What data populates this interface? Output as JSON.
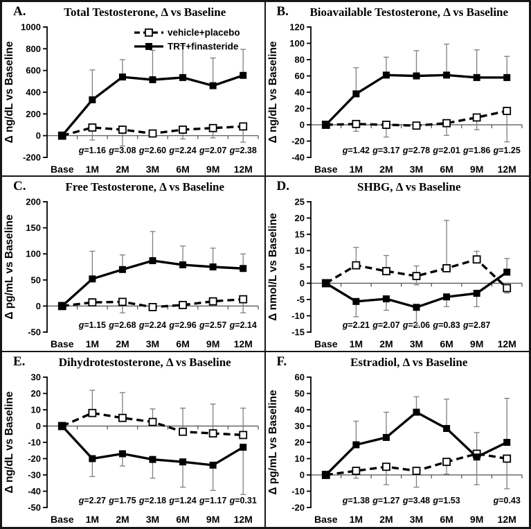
{
  "figure": {
    "colors": {
      "line": "#000000",
      "error": "#7f7f7f",
      "open_fill": "#ffffff",
      "axis": "#000000",
      "zero_line": "#4d4d4d",
      "border": "#161616"
    }
  },
  "chart_data": [
    {
      "type": "line",
      "panel_letter": "A.",
      "title": "Total Testosterone, Δ vs Baseline",
      "ylabel": "Δ ng/dL vs Baseline",
      "ylim": [
        -200,
        1000
      ],
      "ystep": 200,
      "categories": [
        "Base",
        "1M",
        "2M",
        "3M",
        "6M",
        "9M",
        "12M"
      ],
      "g_values": [
        "1.16",
        "3.08",
        "2.60",
        "2.24",
        "2.07",
        "2.38"
      ],
      "show_legend": true,
      "legend_position": "top-right",
      "grid": false,
      "series": [
        {
          "name": "vehicle+placebo",
          "line": "dashed",
          "marker": "open",
          "values": [
            0,
            75,
            55,
            20,
            55,
            70,
            85
          ],
          "err_up": [
            null,
            null,
            null,
            null,
            null,
            null,
            null
          ],
          "err_down": [
            null,
            -40,
            -95,
            -10,
            -30,
            -20,
            -60
          ]
        },
        {
          "name": "TRT+finasteride",
          "line": "solid",
          "marker": "filled",
          "values": [
            0,
            330,
            540,
            515,
            535,
            460,
            555
          ],
          "err_up": [
            null,
            605,
            700,
            785,
            830,
            715,
            795
          ],
          "err_down": [
            null,
            null,
            null,
            null,
            null,
            null,
            null
          ]
        }
      ]
    },
    {
      "type": "line",
      "panel_letter": "B.",
      "title": "Bioavailable Testosterone, Δ vs Baseline",
      "ylabel": "Δ ng/dL vs Baseline",
      "ylim": [
        -40,
        120
      ],
      "ystep": 20,
      "categories": [
        "Base",
        "1M",
        "2M",
        "3M",
        "6M",
        "9M",
        "12M"
      ],
      "g_values": [
        "1.42",
        "3.17",
        "2.78",
        "2.01",
        "1.86",
        "1.25"
      ],
      "show_legend": false,
      "grid": false,
      "series": [
        {
          "name": "vehicle+placebo",
          "line": "dashed",
          "marker": "open",
          "values": [
            0,
            1,
            0,
            -1,
            2,
            9,
            17
          ],
          "err_up": [
            null,
            null,
            null,
            null,
            null,
            null,
            null
          ],
          "err_down": [
            null,
            -8,
            -15,
            -5,
            -13,
            -6,
            -21
          ]
        },
        {
          "name": "TRT+finasteride",
          "line": "solid",
          "marker": "filled",
          "values": [
            0,
            38,
            61,
            60,
            61,
            58,
            58
          ],
          "err_up": [
            null,
            70,
            83,
            91,
            99,
            92,
            84
          ],
          "err_down": [
            null,
            null,
            null,
            null,
            null,
            null,
            null
          ]
        }
      ]
    },
    {
      "type": "line",
      "panel_letter": "C.",
      "title": "Free Testosterone, Δ vs Baseline",
      "ylabel": "Δ pg/mL vs Baseline",
      "ylim": [
        -50,
        200
      ],
      "ystep": 50,
      "categories": [
        "Base",
        "1M",
        "2M",
        "3M",
        "6M",
        "9M",
        "12M"
      ],
      "g_values": [
        "1.15",
        "2.68",
        "2.24",
        "2.96",
        "2.57",
        "2.14"
      ],
      "show_legend": false,
      "grid": false,
      "series": [
        {
          "name": "vehicle+placebo",
          "line": "dashed",
          "marker": "open",
          "values": [
            0,
            7,
            8,
            -2,
            2,
            9,
            13
          ],
          "err_up": [
            null,
            null,
            null,
            null,
            null,
            null,
            null
          ],
          "err_down": [
            null,
            2,
            -13,
            -7,
            -3,
            3,
            -13
          ]
        },
        {
          "name": "TRT+finasteride",
          "line": "solid",
          "marker": "filled",
          "values": [
            0,
            52,
            70,
            87,
            79,
            75,
            72
          ],
          "err_up": [
            null,
            105,
            98,
            143,
            115,
            111,
            100
          ],
          "err_down": [
            null,
            null,
            null,
            null,
            null,
            null,
            null
          ]
        }
      ]
    },
    {
      "type": "line",
      "panel_letter": "D.",
      "title": "SHBG, Δ vs Baseline",
      "ylabel": "Δ nmol/L vs Baseline",
      "ylim": [
        -15,
        25
      ],
      "ystep": 5,
      "categories": [
        "Base",
        "1M",
        "2M",
        "3M",
        "6M",
        "9M",
        "12M"
      ],
      "g_values": [
        "2.21",
        "2.07",
        "2.06",
        "0.83",
        "2.87",
        null
      ],
      "show_legend": false,
      "grid": false,
      "series": [
        {
          "name": "vehicle+placebo",
          "line": "dashed",
          "marker": "open",
          "values": [
            0,
            5.5,
            3.7,
            2.2,
            4.6,
            7.3,
            -1.5
          ],
          "err_up": [
            null,
            11,
            8.5,
            5.3,
            19.3,
            9.8,
            null
          ],
          "err_down": [
            null,
            null,
            null,
            -0.5,
            null,
            null,
            -3
          ]
        },
        {
          "name": "TRT+finasteride",
          "line": "solid",
          "marker": "filled",
          "values": [
            0,
            -5.6,
            -4.8,
            -7.4,
            -4.2,
            -3.1,
            3.4
          ],
          "err_up": [
            null,
            null,
            null,
            null,
            null,
            null,
            7.6
          ],
          "err_down": [
            null,
            -10.3,
            -8.3,
            -13,
            -7.2,
            -7.2,
            null
          ]
        }
      ]
    },
    {
      "type": "line",
      "panel_letter": "E.",
      "title": "Dihydrotestosterone, Δ vs Baseline",
      "ylabel": "Δ ng/dL vs Baseline",
      "ylim": [
        -50,
        30
      ],
      "ystep": 10,
      "categories": [
        "Base",
        "1M",
        "2M",
        "3M",
        "6M",
        "9M",
        "12M"
      ],
      "g_values": [
        "2.27",
        "1.75",
        "2.18",
        "1.24",
        "1.17",
        "0.31"
      ],
      "show_legend": false,
      "grid": false,
      "series": [
        {
          "name": "vehicle+placebo",
          "line": "dashed",
          "marker": "open",
          "values": [
            0,
            8,
            5,
            2.5,
            -3.5,
            -4.5,
            -5.5
          ],
          "err_up": [
            null,
            22,
            20.5,
            10.5,
            11,
            13.5,
            11
          ],
          "err_down": [
            null,
            null,
            null,
            null,
            null,
            null,
            null
          ]
        },
        {
          "name": "TRT+finasteride",
          "line": "solid",
          "marker": "filled",
          "values": [
            0,
            -20,
            -17,
            -20.5,
            -22,
            -24,
            -13
          ],
          "err_up": [
            null,
            null,
            null,
            null,
            null,
            null,
            null
          ],
          "err_down": [
            null,
            -31,
            -24.5,
            -32,
            -37.5,
            -39.5,
            -42
          ]
        }
      ]
    },
    {
      "type": "line",
      "panel_letter": "F.",
      "title": "Estradiol, Δ vs Baseline",
      "ylabel": "Δ pg/mL vs Baseline",
      "ylim": [
        -20,
        60
      ],
      "ystep": 10,
      "categories": [
        "Base",
        "1M",
        "2M",
        "3M",
        "6M",
        "9M",
        "12M"
      ],
      "g_values": [
        "1.38",
        "1.27",
        "3.48",
        "1.53",
        null,
        "0.43"
      ],
      "show_legend": false,
      "grid": false,
      "series": [
        {
          "name": "vehicle+placebo",
          "line": "dashed",
          "marker": "open",
          "values": [
            0,
            2.5,
            5,
            2.5,
            8,
            13,
            10
          ],
          "err_up": [
            null,
            null,
            null,
            null,
            null,
            null,
            null
          ],
          "err_down": [
            null,
            -2,
            -6,
            -7.5,
            0.5,
            -6,
            -8.5
          ]
        },
        {
          "name": "TRT+finasteride",
          "line": "solid",
          "marker": "filled",
          "values": [
            0,
            18.5,
            23,
            38.5,
            28.5,
            11,
            20
          ],
          "err_up": [
            null,
            33,
            38.5,
            48,
            46.5,
            26,
            47
          ],
          "err_down": [
            null,
            null,
            null,
            null,
            null,
            null,
            null
          ]
        }
      ]
    }
  ]
}
